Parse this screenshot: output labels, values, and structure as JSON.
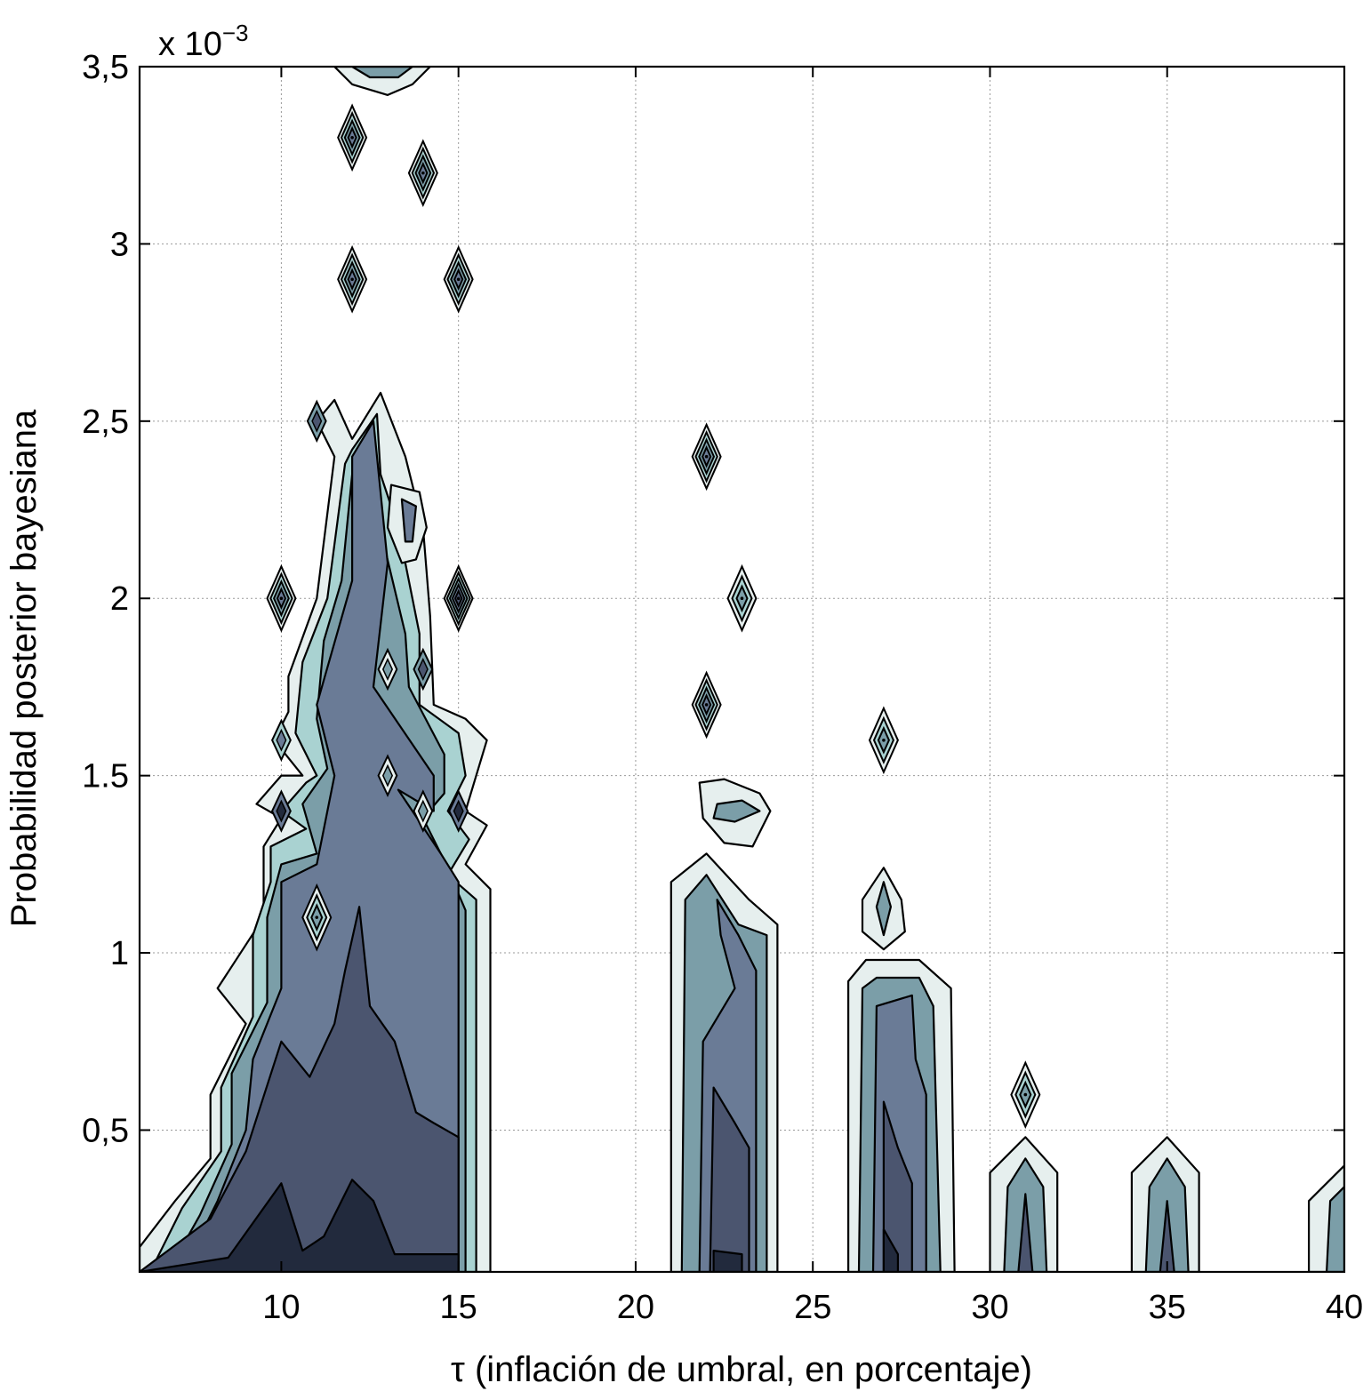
{
  "chart_data": {
    "type": "contour",
    "title": "",
    "xlabel": "τ (inflación de umbral, en porcentaje)",
    "ylabel": "Probabilidad posterior bayesiana",
    "y_multiplier": "x 10",
    "y_multiplier_exp": "−3",
    "xlim": [
      6,
      40
    ],
    "ylim": [
      0.1,
      3.5
    ],
    "x_ticks": [
      10,
      15,
      20,
      25,
      30,
      35,
      40
    ],
    "x_tick_labels": [
      "10",
      "15",
      "20",
      "25",
      "30",
      "35",
      "40"
    ],
    "y_ticks": [
      0.5,
      1,
      1.5,
      2,
      2.5,
      3,
      3.5
    ],
    "y_tick_labels": [
      "0,5",
      "1",
      "1.5",
      "2",
      "2,5",
      "3",
      "3,5"
    ],
    "grid": true,
    "level_colors": [
      "#e6efee",
      "#a9d2d1",
      "#7b9ea8",
      "#6a7b96",
      "#4b556f",
      "#222a3d"
    ],
    "regions": [
      {
        "level": 0,
        "points": [
          [
            6,
            0.1
          ],
          [
            6,
            0.17
          ],
          [
            7,
            0.3
          ],
          [
            8,
            0.42
          ],
          [
            8,
            0.6
          ],
          [
            9,
            0.8
          ],
          [
            8.2,
            0.9
          ],
          [
            9.5,
            1.1
          ],
          [
            9.5,
            1.3
          ],
          [
            10,
            1.38
          ],
          [
            9.3,
            1.42
          ],
          [
            10,
            1.5
          ],
          [
            10.6,
            1.5
          ],
          [
            9.8,
            1.6
          ],
          [
            10.2,
            1.68
          ],
          [
            10.2,
            1.78
          ],
          [
            11,
            2.0
          ],
          [
            11.5,
            2.4
          ],
          [
            11,
            2.5
          ],
          [
            11.5,
            2.56
          ],
          [
            12,
            2.45
          ],
          [
            12.8,
            2.58
          ],
          [
            13.5,
            2.4
          ],
          [
            14,
            2.2
          ],
          [
            14.2,
            1.95
          ],
          [
            14.3,
            1.7
          ],
          [
            15.2,
            1.66
          ],
          [
            15.8,
            1.6
          ],
          [
            15.2,
            1.4
          ],
          [
            15.8,
            1.36
          ],
          [
            15.2,
            1.25
          ],
          [
            15.9,
            1.18
          ],
          [
            15.9,
            0.1
          ]
        ]
      },
      {
        "level": 1,
        "points": [
          [
            6.3,
            0.1
          ],
          [
            7.2,
            0.28
          ],
          [
            8.3,
            0.44
          ],
          [
            8.3,
            0.62
          ],
          [
            9.2,
            0.82
          ],
          [
            9.2,
            1.05
          ],
          [
            9.7,
            1.2
          ],
          [
            9.7,
            1.3
          ],
          [
            10.7,
            1.35
          ],
          [
            10,
            1.4
          ],
          [
            10.7,
            1.48
          ],
          [
            11,
            1.5
          ],
          [
            10.4,
            1.62
          ],
          [
            10.6,
            1.82
          ],
          [
            11.3,
            2.0
          ],
          [
            11.8,
            2.38
          ],
          [
            12,
            2.42
          ],
          [
            12.7,
            2.52
          ],
          [
            12.8,
            2.35
          ],
          [
            13.3,
            2.2
          ],
          [
            13.9,
            1.9
          ],
          [
            13.9,
            1.7
          ],
          [
            15,
            1.62
          ],
          [
            15.2,
            1.5
          ],
          [
            14.7,
            1.4
          ],
          [
            15.3,
            1.32
          ],
          [
            14.7,
            1.22
          ],
          [
            15.5,
            1.15
          ],
          [
            15.5,
            0.1
          ]
        ]
      },
      {
        "level": 2,
        "points": [
          [
            6.8,
            0.1
          ],
          [
            7.7,
            0.26
          ],
          [
            8.6,
            0.46
          ],
          [
            8.6,
            0.66
          ],
          [
            9.6,
            0.86
          ],
          [
            9.6,
            1.1
          ],
          [
            10,
            1.25
          ],
          [
            11,
            1.28
          ],
          [
            10.6,
            1.42
          ],
          [
            11.3,
            1.52
          ],
          [
            11,
            1.66
          ],
          [
            11.2,
            1.88
          ],
          [
            11.7,
            2.05
          ],
          [
            12,
            2.35
          ],
          [
            12.3,
            2.35
          ],
          [
            12.5,
            2.25
          ],
          [
            12.9,
            2.15
          ],
          [
            13.5,
            1.9
          ],
          [
            13.6,
            1.75
          ],
          [
            14.6,
            1.56
          ],
          [
            14.6,
            1.45
          ],
          [
            14,
            1.38
          ],
          [
            14.6,
            1.26
          ],
          [
            15.2,
            1.12
          ],
          [
            15.2,
            0.1
          ]
        ]
      },
      {
        "level": 3,
        "points": [
          [
            7.2,
            0.1
          ],
          [
            8.2,
            0.3
          ],
          [
            9,
            0.5
          ],
          [
            9.2,
            0.7
          ],
          [
            10,
            0.9
          ],
          [
            10,
            1.2
          ],
          [
            11,
            1.25
          ],
          [
            11.5,
            1.5
          ],
          [
            11,
            1.7
          ],
          [
            12,
            2.05
          ],
          [
            12,
            2.4
          ],
          [
            12.6,
            2.5
          ],
          [
            13,
            2.1
          ],
          [
            12.6,
            1.75
          ],
          [
            14.3,
            1.5
          ],
          [
            14.3,
            1.4
          ],
          [
            13.3,
            1.46
          ],
          [
            14.5,
            1.28
          ],
          [
            15,
            1.2
          ],
          [
            15,
            0.1
          ]
        ]
      },
      {
        "level": 4,
        "points": [
          [
            6,
            0.1
          ],
          [
            8,
            0.25
          ],
          [
            9,
            0.44
          ],
          [
            10,
            0.75
          ],
          [
            10.8,
            0.65
          ],
          [
            11.5,
            0.8
          ],
          [
            11.8,
            0.95
          ],
          [
            12.2,
            1.13
          ],
          [
            12.5,
            0.85
          ],
          [
            13.2,
            0.75
          ],
          [
            13.8,
            0.55
          ],
          [
            14.3,
            0.52
          ],
          [
            15,
            0.48
          ],
          [
            15,
            0.1
          ]
        ]
      },
      {
        "level": 5,
        "points": [
          [
            6,
            0.1
          ],
          [
            8.5,
            0.14
          ],
          [
            10,
            0.35
          ],
          [
            10.6,
            0.16
          ],
          [
            11.2,
            0.2
          ],
          [
            12,
            0.36
          ],
          [
            12.6,
            0.3
          ],
          [
            13.2,
            0.15
          ],
          [
            15,
            0.15
          ],
          [
            15,
            0.1
          ]
        ]
      },
      {
        "level": 0,
        "points": [
          [
            21,
            0.1
          ],
          [
            21,
            1.2
          ],
          [
            22,
            1.28
          ],
          [
            23.2,
            1.15
          ],
          [
            24,
            1.08
          ],
          [
            24,
            0.1
          ]
        ]
      },
      {
        "level": 2,
        "points": [
          [
            21.3,
            0.1
          ],
          [
            21.4,
            1.15
          ],
          [
            22,
            1.22
          ],
          [
            22.9,
            1.08
          ],
          [
            23.7,
            1.05
          ],
          [
            23.7,
            0.1
          ]
        ]
      },
      {
        "level": 3,
        "points": [
          [
            21.8,
            0.1
          ],
          [
            21.9,
            0.75
          ],
          [
            22.8,
            0.9
          ],
          [
            22.4,
            1.05
          ],
          [
            22.3,
            1.15
          ],
          [
            22.9,
            1.05
          ],
          [
            23.4,
            0.95
          ],
          [
            23.4,
            0.1
          ]
        ]
      },
      {
        "level": 4,
        "points": [
          [
            22.1,
            0.1
          ],
          [
            22.2,
            0.62
          ],
          [
            22.8,
            0.52
          ],
          [
            23.2,
            0.45
          ],
          [
            23.2,
            0.1
          ]
        ]
      },
      {
        "level": 5,
        "points": [
          [
            22.2,
            0.1
          ],
          [
            22.2,
            0.16
          ],
          [
            23,
            0.15
          ],
          [
            23,
            0.1
          ]
        ]
      },
      {
        "level": 0,
        "points": [
          [
            26,
            0.1
          ],
          [
            26,
            0.92
          ],
          [
            26.5,
            0.98
          ],
          [
            28,
            0.98
          ],
          [
            28.9,
            0.9
          ],
          [
            29,
            0.1
          ]
        ]
      },
      {
        "level": 2,
        "points": [
          [
            26.3,
            0.1
          ],
          [
            26.4,
            0.9
          ],
          [
            26.8,
            0.93
          ],
          [
            28,
            0.93
          ],
          [
            28.4,
            0.85
          ],
          [
            28.6,
            0.1
          ]
        ]
      },
      {
        "level": 3,
        "points": [
          [
            26.7,
            0.1
          ],
          [
            26.8,
            0.85
          ],
          [
            27.8,
            0.88
          ],
          [
            27.9,
            0.7
          ],
          [
            28.2,
            0.6
          ],
          [
            28.2,
            0.1
          ]
        ]
      },
      {
        "level": 4,
        "points": [
          [
            27,
            0.1
          ],
          [
            27,
            0.58
          ],
          [
            27.4,
            0.45
          ],
          [
            27.8,
            0.35
          ],
          [
            27.8,
            0.1
          ]
        ]
      },
      {
        "level": 5,
        "points": [
          [
            27,
            0.1
          ],
          [
            27,
            0.22
          ],
          [
            27.4,
            0.15
          ],
          [
            27.4,
            0.1
          ]
        ]
      },
      {
        "level": 0,
        "points": [
          [
            30,
            0.1
          ],
          [
            30,
            0.38
          ],
          [
            31,
            0.48
          ],
          [
            31.9,
            0.38
          ],
          [
            31.9,
            0.1
          ]
        ]
      },
      {
        "level": 2,
        "points": [
          [
            30.4,
            0.1
          ],
          [
            30.5,
            0.34
          ],
          [
            31,
            0.42
          ],
          [
            31.5,
            0.34
          ],
          [
            31.6,
            0.1
          ]
        ]
      },
      {
        "level": 4,
        "points": [
          [
            30.8,
            0.1
          ],
          [
            31,
            0.32
          ],
          [
            31.2,
            0.1
          ]
        ]
      },
      {
        "level": 0,
        "points": [
          [
            34,
            0.1
          ],
          [
            34,
            0.38
          ],
          [
            35,
            0.48
          ],
          [
            35.9,
            0.38
          ],
          [
            35.9,
            0.1
          ]
        ]
      },
      {
        "level": 2,
        "points": [
          [
            34.4,
            0.1
          ],
          [
            34.5,
            0.34
          ],
          [
            35,
            0.42
          ],
          [
            35.5,
            0.34
          ],
          [
            35.6,
            0.1
          ]
        ]
      },
      {
        "level": 4,
        "points": [
          [
            34.8,
            0.1
          ],
          [
            35,
            0.3
          ],
          [
            35.2,
            0.1
          ]
        ]
      },
      {
        "level": 0,
        "points": [
          [
            39,
            0.1
          ],
          [
            39,
            0.3
          ],
          [
            40,
            0.4
          ],
          [
            40,
            0.1
          ]
        ]
      },
      {
        "level": 2,
        "points": [
          [
            39.5,
            0.1
          ],
          [
            39.6,
            0.3
          ],
          [
            40,
            0.34
          ],
          [
            40,
            0.1
          ]
        ]
      },
      {
        "level": 0,
        "points": [
          [
            11.5,
            3.5
          ],
          [
            12,
            3.45
          ],
          [
            13,
            3.42
          ],
          [
            13.7,
            3.45
          ],
          [
            14.2,
            3.5
          ]
        ]
      },
      {
        "level": 2,
        "points": [
          [
            12,
            3.5
          ],
          [
            12.5,
            3.47
          ],
          [
            13.3,
            3.47
          ],
          [
            13.7,
            3.5
          ]
        ]
      },
      {
        "level": 0,
        "points": [
          [
            21.8,
            1.48
          ],
          [
            22.5,
            1.49
          ],
          [
            23.5,
            1.45
          ],
          [
            23.8,
            1.4
          ],
          [
            23.3,
            1.3
          ],
          [
            22.5,
            1.31
          ],
          [
            21.9,
            1.38
          ]
        ]
      },
      {
        "level": 2,
        "points": [
          [
            22.3,
            1.42
          ],
          [
            23,
            1.43
          ],
          [
            23.5,
            1.4
          ],
          [
            22.8,
            1.37
          ],
          [
            22.2,
            1.38
          ]
        ]
      },
      {
        "level": 0,
        "points": [
          [
            27,
            1.24
          ],
          [
            27.5,
            1.15
          ],
          [
            27.6,
            1.06
          ],
          [
            27,
            1.01
          ],
          [
            26.4,
            1.06
          ],
          [
            26.4,
            1.15
          ]
        ]
      },
      {
        "level": 2,
        "points": [
          [
            27,
            1.2
          ],
          [
            27.2,
            1.13
          ],
          [
            27,
            1.05
          ],
          [
            26.8,
            1.13
          ]
        ]
      },
      {
        "level": 0,
        "points": [
          [
            13.1,
            2.32
          ],
          [
            13.9,
            2.3
          ],
          [
            14.1,
            2.2
          ],
          [
            13.8,
            2.11
          ],
          [
            13.4,
            2.1
          ],
          [
            13,
            2.2
          ]
        ]
      },
      {
        "level": 3,
        "points": [
          [
            13.4,
            2.28
          ],
          [
            13.8,
            2.26
          ],
          [
            13.7,
            2.16
          ],
          [
            13.5,
            2.16
          ]
        ]
      }
    ],
    "diamonds": [
      {
        "x": 12,
        "y": 3.3,
        "top_level": 3
      },
      {
        "x": 14,
        "y": 3.2,
        "top_level": 3
      },
      {
        "x": 12,
        "y": 2.9,
        "top_level": 3
      },
      {
        "x": 15,
        "y": 2.9,
        "top_level": 3
      },
      {
        "x": 10,
        "y": 2.0,
        "top_level": 3
      },
      {
        "x": 15,
        "y": 2.0,
        "top_level": 4
      },
      {
        "x": 23,
        "y": 2.0,
        "top_level": 2
      },
      {
        "x": 22,
        "y": 2.4,
        "top_level": 3
      },
      {
        "x": 22,
        "y": 1.7,
        "top_level": 3
      },
      {
        "x": 27,
        "y": 1.6,
        "top_level": 2
      },
      {
        "x": 11,
        "y": 1.1,
        "top_level": 2
      },
      {
        "x": 31,
        "y": 0.6,
        "top_level": 2
      }
    ],
    "inner_diamonds": [
      {
        "x": 11,
        "y": 2.5,
        "level": 2
      },
      {
        "x": 10,
        "y": 1.6,
        "level": 1
      },
      {
        "x": 10,
        "y": 1.4,
        "level": 3
      },
      {
        "x": 13,
        "y": 1.8,
        "level": 0
      },
      {
        "x": 14,
        "y": 1.8,
        "level": 2
      },
      {
        "x": 13,
        "y": 1.5,
        "level": 0
      },
      {
        "x": 14,
        "y": 1.4,
        "level": 0
      },
      {
        "x": 15,
        "y": 1.4,
        "level": 3
      }
    ]
  }
}
